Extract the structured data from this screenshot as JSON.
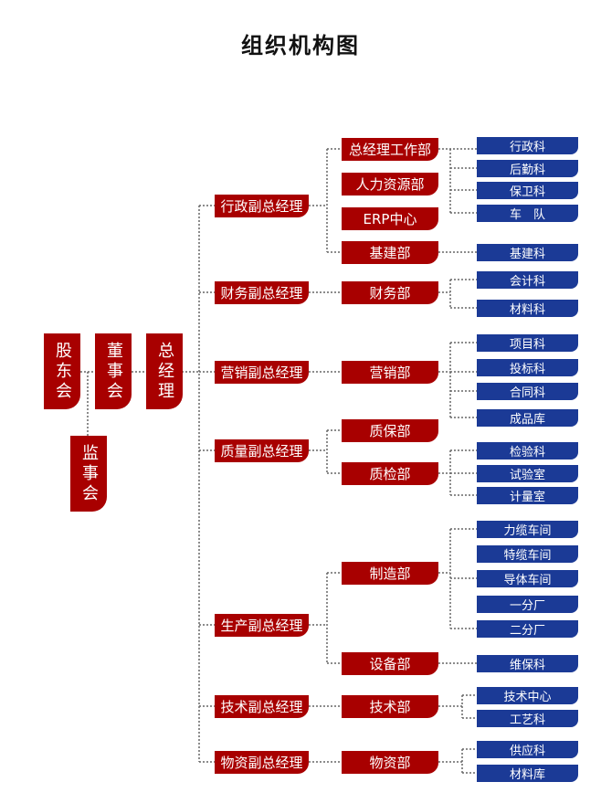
{
  "title": "组织机构图",
  "colors": {
    "red": "#a80000",
    "blue": "#1b3a96",
    "connector": "#666666"
  },
  "top": {
    "shareholders": "股东会",
    "board": "董事会",
    "gm": "总经理",
    "supervisors": "监事会"
  },
  "vps": [
    "行政副总经理",
    "财务副总经理",
    "营销副总经理",
    "质量副总经理",
    "生产副总经理",
    "技术副总经理",
    "物资副总经理"
  ],
  "depts": [
    "总经理工作部",
    "人力资源部",
    "ERP中心",
    "基建部",
    "财务部",
    "营销部",
    "质保部",
    "质检部",
    "制造部",
    "设备部",
    "技术部",
    "物资部"
  ],
  "sections": [
    "行政科",
    "后勤科",
    "保卫科",
    "车　队",
    "基建科",
    "会计科",
    "材料科",
    "项目科",
    "投标科",
    "合同科",
    "成品库",
    "检验科",
    "试验室",
    "计量室",
    "力缆车间",
    "特缆车间",
    "导体车间",
    "一分厂",
    "二分厂",
    "维保科",
    "技术中心",
    "工艺科",
    "供应科",
    "材料库"
  ]
}
